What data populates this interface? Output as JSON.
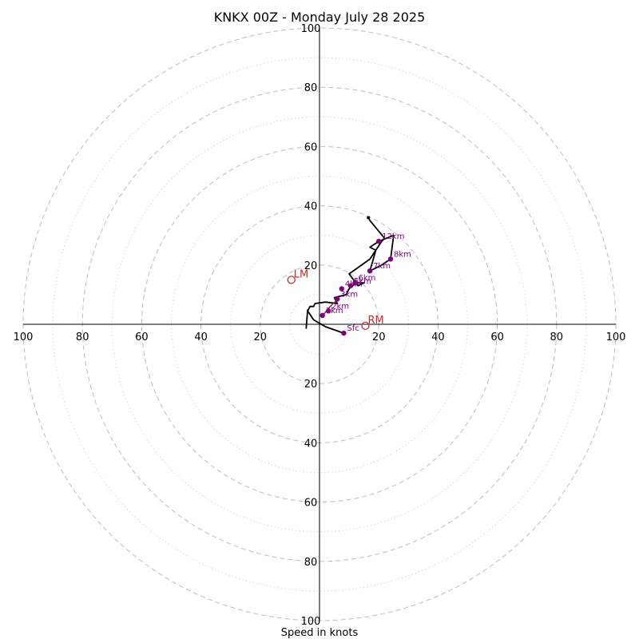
{
  "chart_data": {
    "type": "scatter",
    "title": "KNKX 00Z - Monday July 28 2025",
    "xlabel": "Speed in knots",
    "ylabel": "",
    "xlim": [
      -100,
      100
    ],
    "ylim": [
      -100,
      100
    ],
    "major_rings": [
      20,
      40,
      60,
      80,
      100
    ],
    "minor_rings": [
      10,
      30,
      50,
      70,
      90
    ],
    "ticks": {
      "x_left": [
        "100",
        "80",
        "60",
        "40",
        "20"
      ],
      "x_right": [
        "20",
        "40",
        "60",
        "80",
        "100"
      ],
      "y_up": [
        "20",
        "40",
        "60",
        "80",
        "100"
      ],
      "y_down": [
        "20",
        "40",
        "60",
        "80",
        "100"
      ]
    },
    "hodograph_trace": [
      [
        8.2,
        -3.0
      ],
      [
        2.0,
        -0.8
      ],
      [
        -2.0,
        1.5
      ],
      [
        -4.0,
        4.5
      ],
      [
        -3.2,
        6.0
      ],
      [
        -2.0,
        6.0
      ],
      [
        -1.5,
        7.0
      ],
      [
        2.0,
        7.5
      ],
      [
        6.0,
        7.0
      ],
      [
        5.0,
        9.0
      ],
      [
        9.0,
        10.0
      ],
      [
        10.0,
        12.0
      ],
      [
        11.0,
        13.0
      ],
      [
        13.0,
        14.0
      ],
      [
        15.0,
        14.0
      ],
      [
        13.0,
        13.0
      ],
      [
        10.0,
        17.0
      ],
      [
        17.0,
        22.0
      ],
      [
        19.0,
        25.0
      ],
      [
        17.0,
        26.0
      ],
      [
        20.0,
        28.0
      ],
      [
        25.0,
        30.0
      ],
      [
        24.0,
        22.0
      ],
      [
        21.0,
        20.0
      ],
      [
        17.0,
        18.0
      ],
      [
        19.0,
        25.0
      ],
      [
        21.0,
        28.0
      ],
      [
        22.0,
        29.0
      ],
      [
        17.0,
        35.0
      ],
      [
        16.5,
        36.0
      ]
    ],
    "trace_tail": [
      [
        -4.5,
        -1.5
      ],
      [
        -4.0,
        5.0
      ]
    ],
    "height_points": [
      {
        "label": "Sfc",
        "u": 8.2,
        "v": -3.0
      },
      {
        "label": "1km",
        "u": 1.0,
        "v": 3.0
      },
      {
        "label": "2km",
        "u": 3.0,
        "v": 4.5
      },
      {
        "label": "3km",
        "u": 6.0,
        "v": 8.5
      },
      {
        "label": "4km",
        "u": 7.5,
        "v": 12.0
      },
      {
        "label": "5km",
        "u": 10.5,
        "v": 13.0
      },
      {
        "label": "6km",
        "u": 12.0,
        "v": 14.0
      },
      {
        "label": "7km",
        "u": 17.0,
        "v": 18.0
      },
      {
        "label": "8km",
        "u": 24.0,
        "v": 22.0
      },
      {
        "label": "12km",
        "u": 20.0,
        "v": 28.0
      }
    ],
    "storm_motion": [
      {
        "label": "RM",
        "u": 15.5,
        "v": -0.5
      },
      {
        "label": "LM",
        "u": -9.5,
        "v": 15.0
      }
    ],
    "colors": {
      "trace": "#000000",
      "height_marker": "#800080",
      "storm_motion": "#c03030",
      "inner_segment": "#8b1a1a"
    }
  }
}
